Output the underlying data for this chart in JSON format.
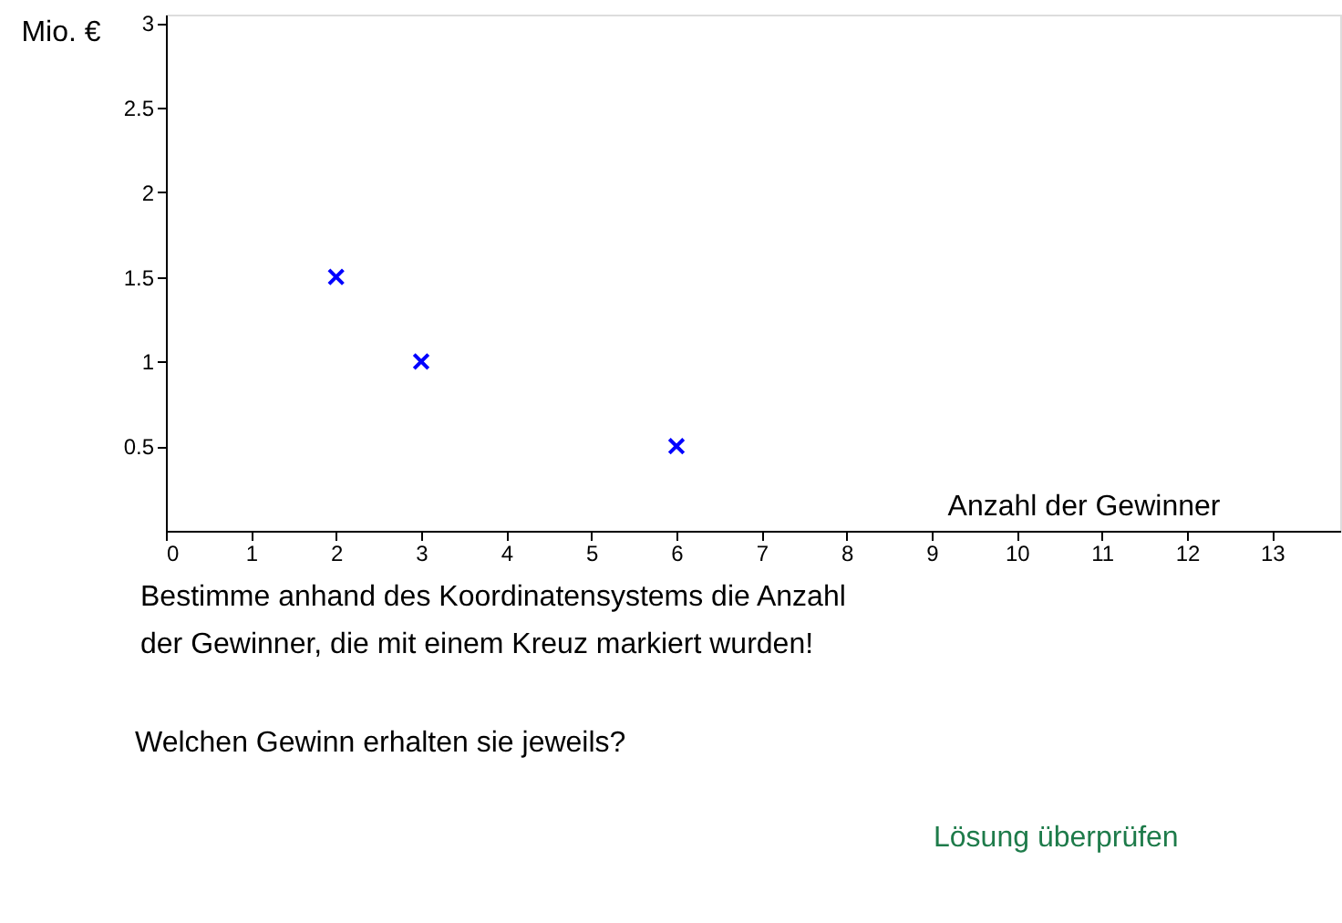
{
  "chart_data": {
    "type": "scatter",
    "xlabel": "Anzahl der Gewinner",
    "ylabel": "Mio. €",
    "x": [
      2,
      3,
      6
    ],
    "series": [
      {
        "color": "#0000ff",
        "values": [
          1.5,
          1,
          0.5
        ]
      }
    ],
    "marker": "cross",
    "xlim": [
      0,
      13.8
    ],
    "ylim": [
      0,
      3.05
    ],
    "xticks": [
      0,
      1,
      2,
      3,
      4,
      5,
      6,
      7,
      8,
      9,
      10,
      11,
      12,
      13
    ],
    "yticks": [
      0.5,
      1,
      1.5,
      2,
      2.5,
      3
    ],
    "grid": false,
    "annotations": [
      "Bestimme anhand des Koordinatensystems die Anzahl\nder Gewinner, die mit einem Kreuz markiert wurden!",
      "Welchen Gewinn erhalten sie jeweils?",
      "Lösung überprüfen"
    ]
  }
}
